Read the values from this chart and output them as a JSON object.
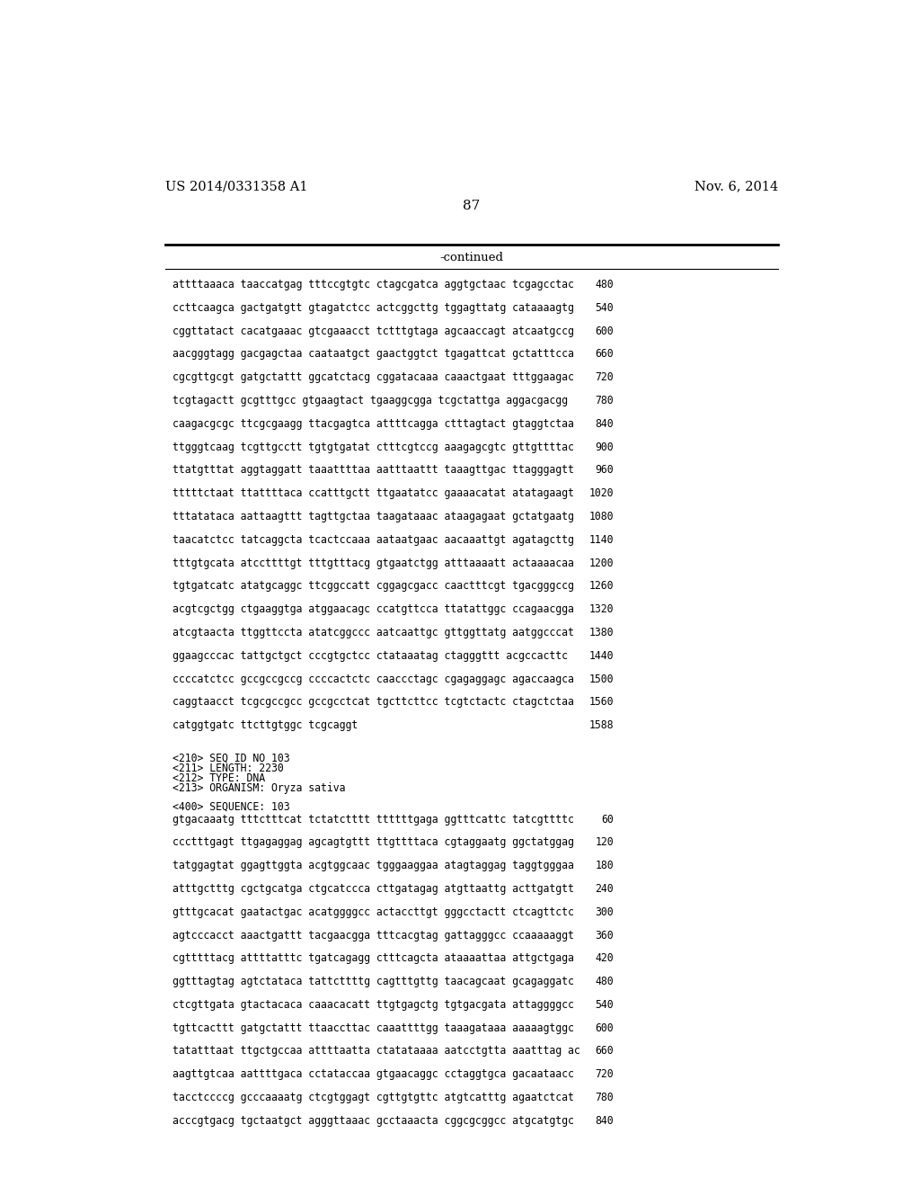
{
  "header_left": "US 2014/0331358 A1",
  "header_right": "Nov. 6, 2014",
  "page_number": "87",
  "continued_text": "-continued",
  "background_color": "#ffffff",
  "text_color": "#000000",
  "sequence_lines_part1": [
    [
      "attttaaaca taaccatgag tttccgtgtc ctagcgatca aggtgctaac tcgagcctac",
      "480"
    ],
    [
      "ccttcaagca gactgatgtt gtagatctcc actcggcttg tggagttatg cataaaagtg",
      "540"
    ],
    [
      "cggttatact cacatgaaac gtcgaaacct tctttgtaga agcaaccagt atcaatgccg",
      "600"
    ],
    [
      "aacgggtagg gacgagctaa caataatgct gaactggtct tgagattcat gctatttcca",
      "660"
    ],
    [
      "cgcgttgcgt gatgctattt ggcatctacg cggatacaaa caaactgaat tttggaagac",
      "720"
    ],
    [
      "tcgtagactt gcgtttgcc gtgaagtact tgaaggcgga tcgctattga aggacgacgg",
      "780"
    ],
    [
      "caagacgcgc ttcgcgaagg ttacgagtca attttcagga ctttagtact gtaggtctaa",
      "840"
    ],
    [
      "ttgggtcaag tcgttgcctt tgtgtgatat ctttcgtccg aaagagcgtc gttgttttac",
      "900"
    ],
    [
      "ttatgtttat aggtaggatt taaattttaa aatttaattt taaagttgac ttagggagtt",
      "960"
    ],
    [
      "tttttctaat ttattttaca ccatttgctt ttgaatatcc gaaaacatat atatagaagt",
      "1020"
    ],
    [
      "tttatataca aattaagttt tagttgctaa taagataaac ataagagaat gctatgaatg",
      "1080"
    ],
    [
      "taacatctcc tatcaggcta tcactccaaa aataatgaac aacaaattgt agatagcttg",
      "1140"
    ],
    [
      "tttgtgcata atccttttgt tttgtttacg gtgaatctgg atttaaaatt actaaaacaa",
      "1200"
    ],
    [
      "tgtgatcatc atatgcaggc ttcggccatt cggagcgacc caactttcgt tgacgggccg",
      "1260"
    ],
    [
      "acgtcgctgg ctgaaggtga atggaacagc ccatgttcca ttatattggc ccagaacgga",
      "1320"
    ],
    [
      "atcgtaacta ttggttccta atatcggccc aatcaattgc gttggttatg aatggcccat",
      "1380"
    ],
    [
      "ggaagcccac tattgctgct cccgtgctcc ctataaatag ctagggttt acgccacttc",
      "1440"
    ],
    [
      "ccccatctcc gccgccgccg ccccactctc caaccctagc cgagaggagc agaccaagca",
      "1500"
    ],
    [
      "caggtaacct tcgcgccgcc gccgcctcat tgcttcttcc tcgtctactc ctagctctaa",
      "1560"
    ],
    [
      "catggtgatc ttcttgtggc tcgcaggt",
      "1588"
    ]
  ],
  "metadata_lines": [
    "<210> SEQ ID NO 103",
    "<211> LENGTH: 2230",
    "<212> TYPE: DNA",
    "<213> ORGANISM: Oryza sativa"
  ],
  "sequence_label": "<400> SEQUENCE: 103",
  "sequence_lines_part2": [
    [
      "gtgacaaatg tttctttcat tctatctttt ttttttgaga ggtttcattc tatcgttttc",
      "60"
    ],
    [
      "ccctttgagt ttgagaggag agcagtgttt ttgttttaca cgtaggaatg ggctatggag",
      "120"
    ],
    [
      "tatggagtat ggagttggta acgtggcaac tgggaaggaa atagtaggag taggtgggaa",
      "180"
    ],
    [
      "atttgctttg cgctgcatga ctgcatccca cttgatagag atgttaattg acttgatgtt",
      "240"
    ],
    [
      "gtttgcacat gaatactgac acatggggcc actaccttgt gggcctactt ctcagttctc",
      "300"
    ],
    [
      "agtcccacct aaactgattt tacgaacgga tttcacgtag gattagggcc ccaaaaaggt",
      "360"
    ],
    [
      "cgtttttacg attttatttc tgatcagagg ctttcagcta ataaaattaa attgctgaga",
      "420"
    ],
    [
      "ggtttagtag agtctataca tattcttttg cagtttgttg taacagcaat gcagaggatc",
      "480"
    ],
    [
      "ctcgttgata gtactacaca caaacacatt ttgtgagctg tgtgacgata attaggggcc",
      "540"
    ],
    [
      "tgttcacttt gatgctattt ttaaccttac caaattttgg taaagataaa aaaaagtggc",
      "600"
    ],
    [
      "tatatttaat ttgctgccaa attttaatta ctatataaaa aatcctgtta aaatttag ac",
      "660"
    ],
    [
      "aagttgtcaa aattttgaca cctataccaa gtgaacaggc cctaggtgca gacaataacc",
      "720"
    ],
    [
      "tacctccccg gcccaaaatg ctcgtggagt cgttgtgttc atgtcatttg agaatctcat",
      "780"
    ],
    [
      "acccgtgacg tgctaatgct agggttaaac gcctaaacta cggcgcggcc atgcatgtgc",
      "840"
    ]
  ]
}
